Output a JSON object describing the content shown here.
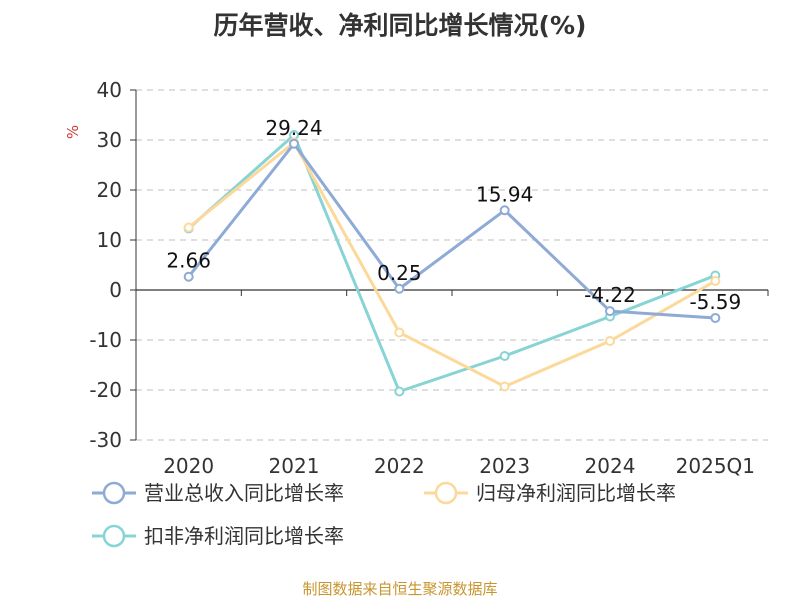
{
  "chart_data": {
    "type": "line",
    "title": "历年营收、净利同比增长情况(%)",
    "ylabel": "%",
    "xlabel": "",
    "categories": [
      "2020",
      "2021",
      "2022",
      "2023",
      "2024",
      "2025Q1"
    ],
    "ylim": [
      -30,
      40
    ],
    "yticks": [
      40,
      30,
      20,
      10,
      0,
      -10,
      -20,
      -30
    ],
    "grid": true,
    "legend_position": "bottom",
    "series": [
      {
        "name": "营业总收入同比增长率",
        "color": "#8eaad6",
        "values": [
          2.66,
          29.24,
          0.25,
          15.94,
          -4.22,
          -5.59
        ],
        "labels": [
          "2.66",
          "29.24",
          "0.25",
          "15.94",
          "-4.22",
          "-5.59"
        ]
      },
      {
        "name": "归母净利润同比增长率",
        "color": "#fcd99a",
        "values": [
          12.5,
          29.5,
          -8.5,
          -19.3,
          -10.2,
          1.8
        ]
      },
      {
        "name": "扣非净利润同比增长率",
        "color": "#88d4d4",
        "values": [
          12.3,
          31.0,
          -20.3,
          -13.2,
          -5.3,
          2.9
        ]
      }
    ]
  },
  "source": "制图数据来自恒生聚源数据库"
}
